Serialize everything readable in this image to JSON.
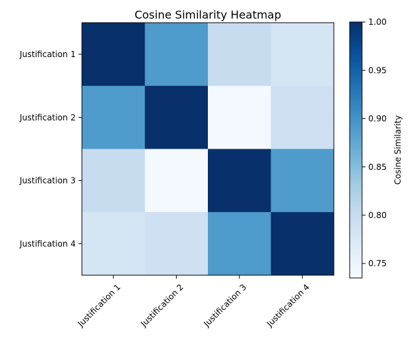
{
  "chart_data": {
    "type": "heatmap",
    "title": "Cosine Similarity Heatmap",
    "xlabel": "",
    "ylabel": "",
    "x_categories": [
      "Justification 1",
      "Justification 2",
      "Justification 3",
      "Justification 4"
    ],
    "y_categories": [
      "Justification 1",
      "Justification 2",
      "Justification 3",
      "Justification 4"
    ],
    "values": [
      [
        1.0,
        0.89,
        0.8,
        0.78
      ],
      [
        0.89,
        1.0,
        0.74,
        0.79
      ],
      [
        0.8,
        0.74,
        1.0,
        0.89
      ],
      [
        0.78,
        0.79,
        0.89,
        1.0
      ]
    ],
    "colorscale": "Blues",
    "colorbar": {
      "label": "Cosine Similarity",
      "range": [
        0.735,
        1.0
      ],
      "ticks": [
        "0.75",
        "0.80",
        "0.85",
        "0.90",
        "0.95",
        "1.00"
      ]
    },
    "x_tick_rotation_deg": 45,
    "grid": false
  }
}
